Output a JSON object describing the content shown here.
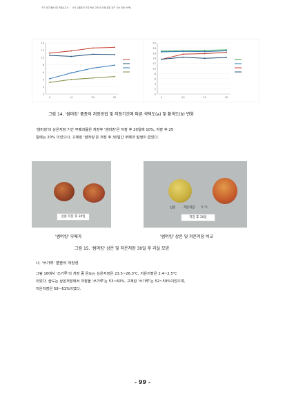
{
  "header": {
    "running_title": "국가 연구개발사업 최종보고서 — 사과 신품종의 저장 특성 구명 및 유통 품질 관리 기술 개발 (부록)"
  },
  "figure14": {
    "caption": "그림 14. '썸머킹' 품종의 저장방법 및 저장기간에 따른 색택도(a) 및 황색도(b) 변화"
  },
  "chart_data": [
    {
      "type": "line",
      "panel": "a",
      "categories": [
        "0",
        "10",
        "20",
        "30"
      ],
      "xlabel": "",
      "ylabel": "",
      "ylim": [
        0,
        14
      ],
      "tick_labels_y": [
        "14",
        "12",
        "10",
        "8",
        "6",
        "4",
        "2",
        "0"
      ],
      "legend_position": "right",
      "legend": [
        "",
        "",
        "",
        ""
      ],
      "series": [
        {
          "color": "#c0392b",
          "values": [
            11.2,
            11.8,
            12.6,
            12.8
          ]
        },
        {
          "color": "#1f4e79",
          "values": [
            10.6,
            10.3,
            10.9,
            10.8
          ]
        },
        {
          "color": "#2e75b6",
          "values": [
            4.2,
            5.8,
            7.1,
            7.9
          ]
        },
        {
          "color": "#7f8c3f",
          "values": [
            3.2,
            4.0,
            4.4,
            4.8
          ]
        }
      ]
    },
    {
      "type": "line",
      "panel": "b",
      "categories": [
        "0",
        "10",
        "20",
        "30"
      ],
      "xlabel": "",
      "ylabel": "",
      "ylim": [
        0,
        20
      ],
      "tick_labels_y": [
        "20",
        "18",
        "16",
        "14",
        "12",
        "10",
        "8",
        "6",
        "4",
        "2",
        "0"
      ],
      "legend_position": "right",
      "legend": [
        "",
        "",
        "",
        ""
      ],
      "series": [
        {
          "color": "#2e9d4a",
          "values": [
            16.8,
            16.9,
            17.1,
            17.3
          ]
        },
        {
          "color": "#2e75b6",
          "values": [
            16.5,
            16.7,
            16.6,
            16.9
          ]
        },
        {
          "color": "#c0392b",
          "values": [
            13.6,
            15.6,
            15.8,
            16.3
          ]
        },
        {
          "color": "#1f4e79",
          "values": [
            13.6,
            14.4,
            14.0,
            14.3
          ]
        }
      ]
    }
  ],
  "paragraph1": {
    "lines": [
      "'썸머킹'의 상온저장 기간 부패과율은 저장후 '썸머킹'은 저장 후 20일에 10%, 저장 후 25",
      "일에는 20% 이었으나, 고제킹 '썸머킹'은 저장 후 30일간 부패과 발생이 없었다."
    ]
  },
  "photos": {
    "left_label": "상온 저장 후 30일",
    "right_label_left": "상온",
    "right_label_mid": "저온저장",
    "right_label_right": "5 ℃",
    "right_card": "저장 후 30일",
    "left_caption": "'썸머킹' 부패과",
    "right_caption": "'썸머킹' 상온 및 저온저장 비교"
  },
  "figure15": {
    "caption": "그림 15. '썸머킹' 상온 및 저온저장 30일 후 과실 모양"
  },
  "section": {
    "heading": "나. '쓰가루' 품종의 저장성"
  },
  "paragraph2": {
    "lines": [
      "그림 16에서 '쓰가루'의 저장 중 온도는 상온저장은 23.5~26.3℃, 저온저장은 2.4~2.5℃",
      "이었다. 습도는 상온저장에서 저장을 '쓰가루'는 53~60%, 고제킹 '쓰가루'는 52~59%이었으며,",
      "저온저장은 58~61%이었다."
    ]
  },
  "page": {
    "number": "- 99 -"
  }
}
